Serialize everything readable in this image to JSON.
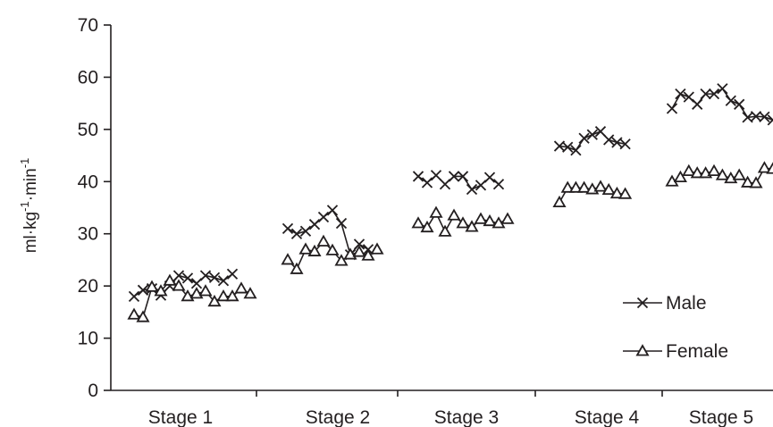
{
  "chart_data": {
    "type": "line",
    "ylabel_parts": [
      "ml·kg",
      "-1",
      "·min",
      "-1"
    ],
    "ylim": [
      0,
      70
    ],
    "yticks": [
      0,
      10,
      20,
      30,
      40,
      50,
      60,
      70
    ],
    "categories": [
      "Stage 1",
      "Stage 2",
      "Stage 3",
      "Stage 4",
      "Stage 5"
    ],
    "grid": false,
    "legend_position": "bottom-right",
    "series": [
      {
        "name": "Male",
        "marker": "x",
        "color": "#231f20",
        "segments": [
          [
            18.0,
            19.2,
            19.5,
            18.2,
            20.0,
            22.0,
            21.5,
            20.5,
            22.0,
            21.6,
            21.0,
            22.3
          ],
          [
            31.0,
            30.0,
            30.5,
            31.8,
            33.2,
            34.5,
            32.0,
            26.0,
            28.0,
            27.0
          ],
          [
            41.0,
            39.8,
            41.2,
            39.5,
            41.0,
            41.0,
            38.5,
            39.3,
            40.8,
            39.5
          ],
          [
            46.8,
            46.6,
            46.0,
            48.3,
            49.0,
            49.6,
            48.0,
            47.5,
            47.2
          ],
          [
            54.0,
            56.8,
            56.2,
            54.8,
            56.8,
            56.8,
            57.8,
            55.5,
            54.8,
            52.3,
            52.5,
            52.4,
            51.8
          ]
        ]
      },
      {
        "name": "Female",
        "marker": "triangle",
        "color": "#231f20",
        "segments": [
          [
            14.5,
            14.0,
            19.8,
            19.0,
            21.0,
            20.0,
            18.0,
            18.5,
            19.0,
            17.0,
            18.0,
            18.0,
            19.5,
            18.5
          ],
          [
            25.0,
            23.2,
            27.0,
            26.6,
            28.5,
            26.8,
            24.8,
            26.0,
            26.5,
            25.8,
            27.0
          ],
          [
            32.0,
            31.2,
            34.0,
            30.4,
            33.5,
            32.0,
            31.3,
            32.8,
            32.4,
            32.0,
            32.8
          ],
          [
            36.0,
            38.8,
            38.8,
            38.8,
            38.5,
            39.0,
            38.4,
            37.7,
            37.6
          ],
          [
            40.0,
            40.8,
            42.0,
            41.6,
            41.6,
            42.0,
            41.2,
            40.6,
            41.2,
            39.8,
            39.7,
            42.6,
            42.4
          ]
        ]
      }
    ]
  }
}
